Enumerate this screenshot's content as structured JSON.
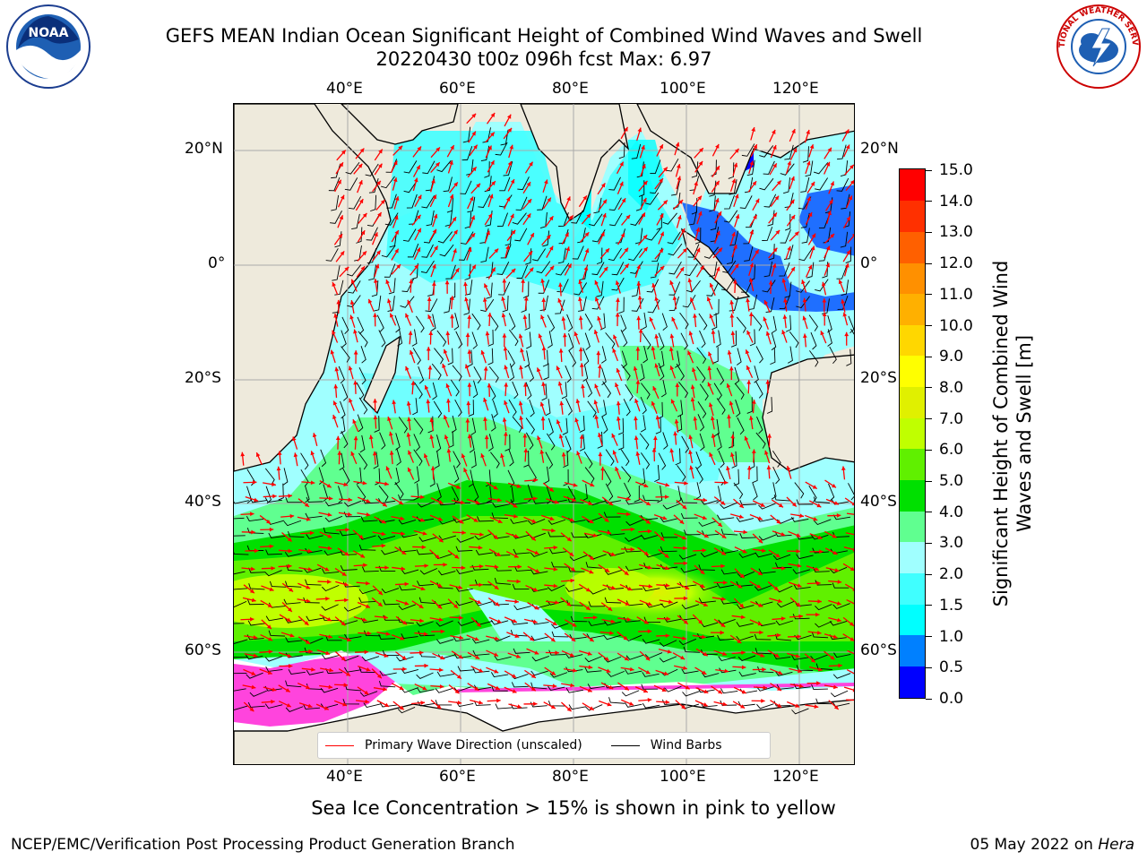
{
  "title": {
    "line1": "GEFS MEAN Indian Ocean Significant Height of Combined Wind Waves and Swell",
    "line2": "20220430 t00z 096h fcst   Max: 6.97"
  },
  "axes": {
    "lon_ticks": [
      "40°E",
      "60°E",
      "80°E",
      "100°E",
      "120°E"
    ],
    "lat_ticks": [
      "20°N",
      "0°",
      "20°S",
      "40°S",
      "60°S"
    ]
  },
  "legend": {
    "wave_direction": "Primary Wave Direction (unscaled)",
    "wind_barbs": "Wind Barbs",
    "wave_color": "#ff0000",
    "barb_color": "#000000"
  },
  "colorbar": {
    "label": "Significant Height of Combined Wind Waves and Swell [m]",
    "ticks": [
      "0.0",
      "0.5",
      "1.0",
      "1.5",
      "2.0",
      "3.0",
      "4.0",
      "5.0",
      "6.0",
      "7.0",
      "8.0",
      "9.0",
      "10.0",
      "11.0",
      "12.0",
      "13.0",
      "14.0",
      "15.0"
    ],
    "colors": [
      "#0000ff",
      "#0080ff",
      "#00ffff",
      "#40ffff",
      "#a0ffff",
      "#60ff90",
      "#00e000",
      "#60f000",
      "#c0ff00",
      "#e0f000",
      "#ffff00",
      "#ffd700",
      "#ffb000",
      "#ff9000",
      "#ff6000",
      "#ff3000",
      "#ff0000"
    ]
  },
  "map_colors": {
    "land": "#eeeadc",
    "sea_ice": "#ff44dd",
    "ice_edge": "#ffffff"
  },
  "logos": {
    "noaa": "NOAA",
    "nws": "NATIONAL WEATHER SERVICE"
  },
  "note": "Sea Ice Concentration > 15% is shown in pink to yellow",
  "footer": {
    "left": "NCEP/EMC/Verification Post Processing Product Generation Branch",
    "date": "05 May 2022 on ",
    "machine": "Hera"
  }
}
